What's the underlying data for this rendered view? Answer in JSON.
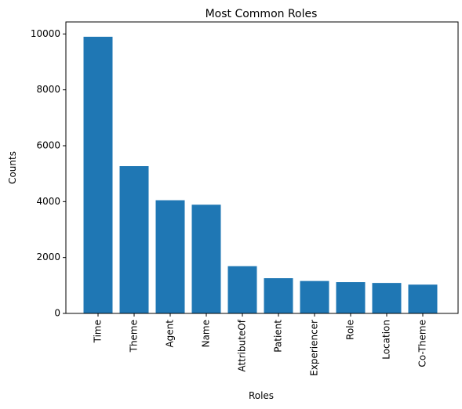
{
  "chart_data": {
    "type": "bar",
    "title": "Most Common Roles",
    "xlabel": "Roles",
    "ylabel": "Counts",
    "categories": [
      "Time",
      "Theme",
      "Agent",
      "Name",
      "AttributeOf",
      "Patient",
      "Experiencer",
      "Role",
      "Location",
      "Co-Theme"
    ],
    "values": [
      9900,
      5270,
      4050,
      3890,
      1690,
      1260,
      1160,
      1120,
      1090,
      1030
    ],
    "ylim": [
      0,
      10430
    ],
    "yticks": [
      0,
      2000,
      4000,
      6000,
      8000,
      10000
    ],
    "bar_color": "#1f77b4",
    "grid": false,
    "legend": "none"
  }
}
